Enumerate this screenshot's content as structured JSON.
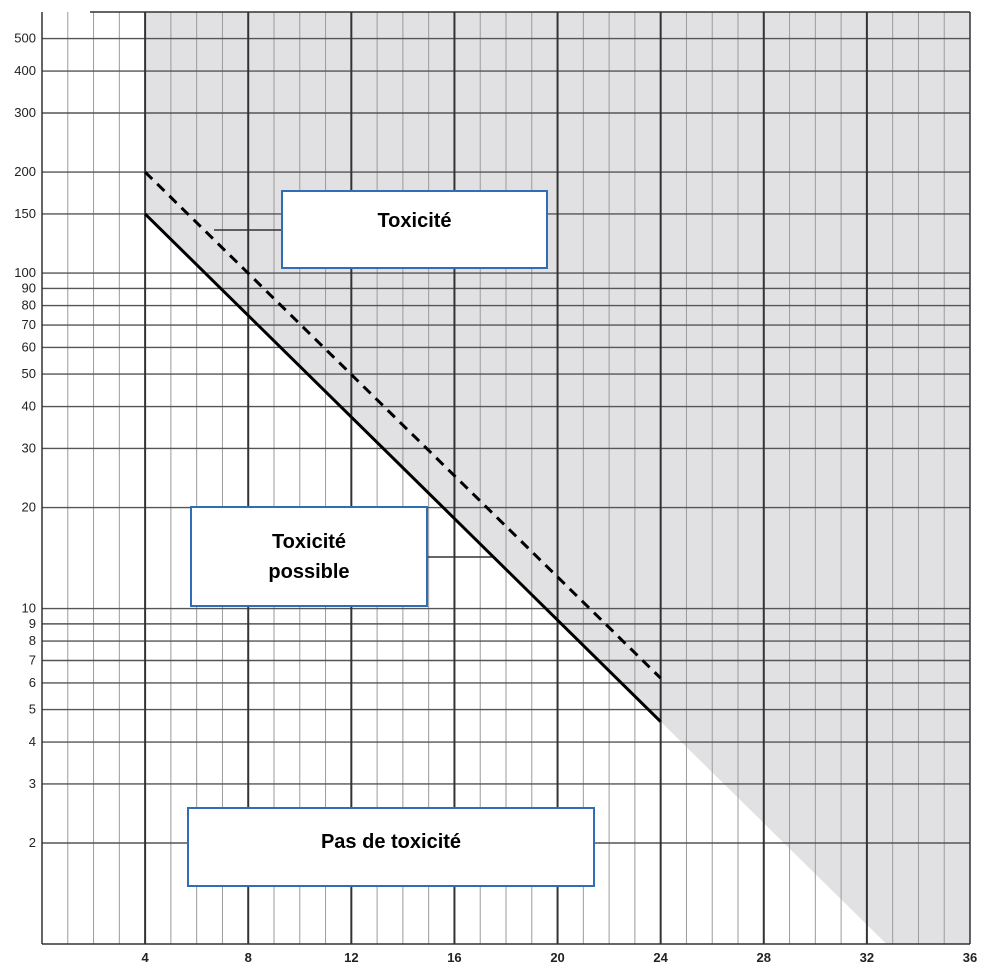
{
  "chart_data": {
    "type": "line",
    "title": "",
    "xlabel": "",
    "ylabel": "",
    "y_scale": "log",
    "xlim": [
      0,
      36
    ],
    "ylim": [
      1,
      600
    ],
    "x_ticks": [
      4,
      8,
      12,
      16,
      20,
      24,
      28,
      32,
      36
    ],
    "y_ticks": [
      2,
      3,
      4,
      5,
      6,
      7,
      8,
      9,
      10,
      20,
      30,
      40,
      50,
      60,
      70,
      80,
      90,
      100,
      150,
      200,
      300,
      400,
      500
    ],
    "grid": true,
    "series": [
      {
        "style": "solid",
        "color": "#000000",
        "x": [
          4,
          24
        ],
        "y": [
          150,
          4.6
        ]
      },
      {
        "style": "dashed",
        "color": "#000000",
        "x": [
          4,
          24
        ],
        "y": [
          200,
          6.2
        ]
      }
    ],
    "shaded_region_color": "#e1e1e3",
    "annotations": [
      {
        "key": "toxicite",
        "lines": [
          "Toxicité"
        ]
      },
      {
        "key": "toxicite_possible",
        "lines": [
          "Toxicité",
          "possible"
        ]
      },
      {
        "key": "pas_de_toxicite",
        "lines": [
          "Pas de toxicité"
        ]
      }
    ]
  },
  "labels": {
    "toxicite": "Toxicité",
    "toxicite_possible_line1": "Toxicité",
    "toxicite_possible_line2": "possible",
    "pas_de_toxicite": "Pas de toxicité"
  },
  "colors": {
    "box_border": "#2f6db5",
    "major_grid": "#333333",
    "minor_grid": "#9a9a9a"
  }
}
